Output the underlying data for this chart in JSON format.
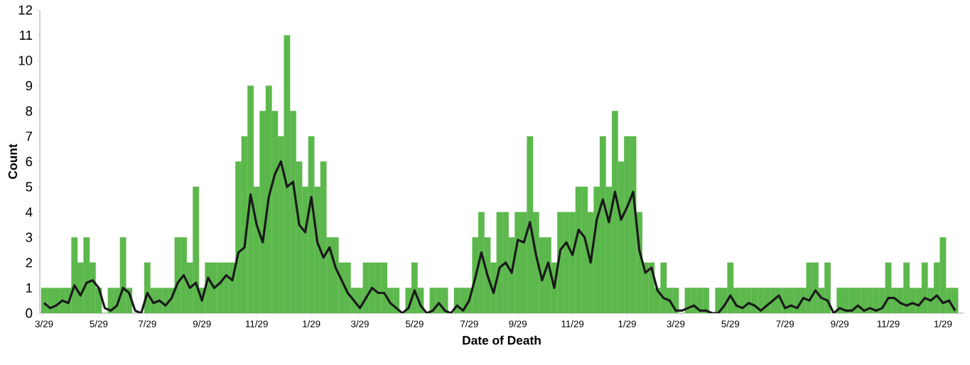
{
  "chart_data": {
    "type": "bar",
    "xlabel": "Date of Death",
    "ylabel": "Count",
    "categories": [
      "3/29",
      null,
      null,
      null,
      null,
      null,
      null,
      null,
      null,
      "5/29",
      null,
      null,
      null,
      null,
      null,
      null,
      null,
      "7/29",
      null,
      null,
      null,
      null,
      null,
      null,
      null,
      null,
      "9/29",
      null,
      null,
      null,
      null,
      null,
      null,
      null,
      null,
      "11/29",
      null,
      null,
      null,
      null,
      null,
      null,
      null,
      null,
      "1/29",
      null,
      null,
      null,
      null,
      null,
      null,
      null,
      "3/29",
      null,
      null,
      null,
      null,
      null,
      null,
      null,
      null,
      "5/29",
      null,
      null,
      null,
      null,
      null,
      null,
      null,
      null,
      "7/29",
      null,
      null,
      null,
      null,
      null,
      null,
      null,
      "9/29",
      null,
      null,
      null,
      null,
      null,
      null,
      null,
      null,
      "11/29",
      null,
      null,
      null,
      null,
      null,
      null,
      null,
      null,
      "1/29",
      null,
      null,
      null,
      null,
      null,
      null,
      null,
      "3/29",
      null,
      null,
      null,
      null,
      null,
      null,
      null,
      null,
      "5/29",
      null,
      null,
      null,
      null,
      null,
      null,
      null,
      null,
      "7/29",
      null,
      null,
      null,
      null,
      null,
      null,
      null,
      null,
      "9/29",
      null,
      null,
      null,
      null,
      null,
      null,
      null,
      "11/29",
      null,
      null,
      null,
      null,
      null,
      null,
      null,
      null,
      "1/29",
      null,
      null
    ],
    "series": [
      {
        "color": "#5cb84c",
        "values": [
          1,
          1,
          1,
          1,
          1,
          3,
          2,
          3,
          2,
          1,
          0,
          1,
          1,
          3,
          1,
          0,
          0,
          2,
          1,
          1,
          1,
          1,
          3,
          3,
          2,
          5,
          1,
          2,
          2,
          2,
          2,
          2,
          6,
          7,
          9,
          5,
          8,
          9,
          8,
          7,
          11,
          8,
          6,
          5,
          7,
          5,
          6,
          3,
          3,
          2,
          2,
          1,
          1,
          2,
          2,
          2,
          2,
          1,
          1,
          0,
          1,
          2,
          1,
          0,
          1,
          1,
          1,
          0,
          1,
          1,
          1,
          3,
          4,
          3,
          2,
          4,
          4,
          3,
          4,
          4,
          7,
          4,
          3,
          3,
          2,
          4,
          4,
          4,
          5,
          5,
          4,
          5,
          7,
          5,
          8,
          6,
          7,
          7,
          4,
          2,
          2,
          1,
          2,
          1,
          1,
          0,
          1,
          1,
          1,
          1,
          0,
          1,
          1,
          2,
          1,
          1,
          1,
          1,
          1,
          1,
          1,
          1,
          1,
          1,
          1,
          1,
          2,
          2,
          1,
          2,
          0,
          1,
          1,
          1,
          1,
          1,
          1,
          1,
          1,
          2,
          1,
          1,
          2,
          1,
          1,
          2,
          1,
          2,
          3,
          1,
          1
        ]
      },
      {
        "type": "line",
        "color": "#1a1a1a",
        "values": [
          0.4,
          0.2,
          0.3,
          0.5,
          0.4,
          1.1,
          0.7,
          1.2,
          1.3,
          1.0,
          0.2,
          0.1,
          0.3,
          1.0,
          0.8,
          0.1,
          0,
          0.8,
          0.4,
          0.5,
          0.3,
          0.6,
          1.2,
          1.5,
          1.0,
          1.2,
          0.5,
          1.4,
          1.0,
          1.2,
          1.5,
          1.3,
          2.4,
          2.6,
          4.7,
          3.5,
          2.8,
          4.6,
          5.5,
          6.0,
          5.0,
          5.2,
          3.5,
          3.2,
          4.6,
          2.8,
          2.2,
          2.6,
          1.8,
          1.3,
          0.8,
          0.5,
          0.2,
          0.6,
          1.0,
          0.8,
          0.8,
          0.4,
          0.2,
          0,
          0.2,
          0.9,
          0.3,
          0,
          0.1,
          0.4,
          0.1,
          0,
          0.3,
          0.1,
          0.5,
          1.4,
          2.4,
          1.5,
          0.8,
          1.8,
          2.0,
          1.6,
          2.9,
          2.8,
          3.6,
          2.3,
          1.3,
          2.0,
          1.0,
          2.5,
          2.8,
          2.3,
          3.3,
          3.0,
          2.0,
          3.7,
          4.5,
          3.6,
          4.8,
          3.7,
          4.2,
          4.8,
          2.5,
          1.6,
          1.8,
          0.9,
          0.6,
          0.5,
          0.1,
          0.1,
          0.2,
          0.3,
          0.1,
          0.1,
          0,
          0,
          0.3,
          0.7,
          0.3,
          0.2,
          0.4,
          0.3,
          0.1,
          0.3,
          0.5,
          0.7,
          0.2,
          0.3,
          0.2,
          0.6,
          0.5,
          0.9,
          0.6,
          0.5,
          0,
          0.2,
          0.1,
          0.1,
          0.3,
          0.1,
          0.2,
          0.1,
          0.2,
          0.6,
          0.6,
          0.4,
          0.3,
          0.4,
          0.3,
          0.6,
          0.5,
          0.7,
          0.4,
          0.5,
          0.1
        ]
      }
    ],
    "ylim": [
      0,
      12
    ],
    "yticks": [
      0,
      1,
      2,
      3,
      4,
      5,
      6,
      7,
      8,
      9,
      10,
      11,
      12
    ]
  }
}
